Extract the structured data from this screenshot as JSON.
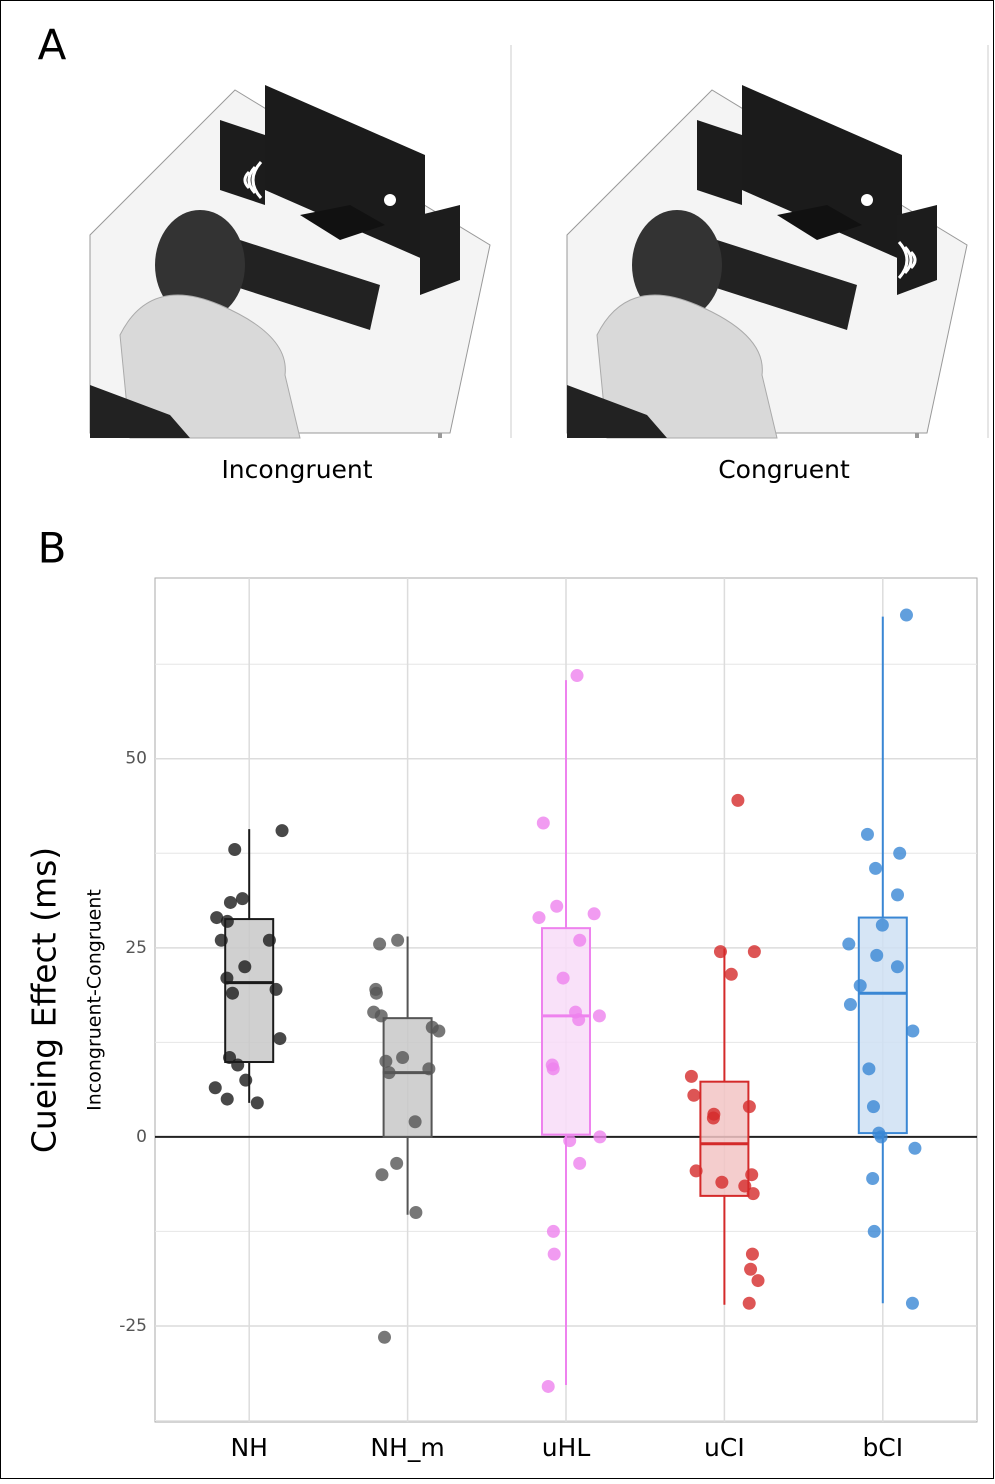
{
  "panel_a": {
    "label": "A",
    "captions": [
      "Incongruent",
      "Congruent"
    ]
  },
  "chart_data": {
    "type": "box",
    "panel_label": "B",
    "ylabel": "Cueing Effect (ms)",
    "ylabel_sub": "Incongruent-Congruent",
    "categories": [
      "NH",
      "NH_m",
      "uHL",
      "uCI",
      "bCI"
    ],
    "ylim": [
      -37.7,
      73.9
    ],
    "yticks": [
      -25,
      0,
      25,
      50
    ],
    "grid": true,
    "hline": 0,
    "groups": [
      {
        "color": "#1a1a1a",
        "fill": "#c8c8c8",
        "q1": 9.9,
        "median": 20.4,
        "q3": 28.8,
        "whisker_low": 4.5,
        "whisker_high": 40.7,
        "points": [
          40.5,
          38,
          31.5,
          31,
          29,
          28.5,
          26,
          26,
          22.5,
          21,
          19.5,
          19,
          13,
          10.5,
          9.5,
          7.5,
          6.5,
          5,
          4.5
        ]
      },
      {
        "color": "#555555",
        "fill": "#c8c8c8",
        "q1": 0,
        "median": 8.5,
        "q3": 15.7,
        "whisker_low": -10.3,
        "whisker_high": 26.5,
        "points": [
          26,
          25.5,
          19.5,
          19,
          16.5,
          16,
          14.5,
          14,
          10.5,
          10,
          9,
          8.5,
          2,
          -3.5,
          -5,
          -10,
          -26.5
        ]
      },
      {
        "color": "#ee82ee",
        "fill": "#f8dcf8",
        "q1": 0.3,
        "median": 16,
        "q3": 27.6,
        "whisker_low": -32.8,
        "whisker_high": 60.4,
        "points": [
          61,
          41.5,
          30.5,
          29.5,
          29,
          26,
          21,
          16.5,
          16,
          15.5,
          9.5,
          9,
          0,
          -0.5,
          -3.5,
          -12.5,
          -15.5,
          -33
        ]
      },
      {
        "color": "#d42a2a",
        "fill": "#f2c4c4",
        "q1": -7.8,
        "median": -0.9,
        "q3": 7.3,
        "whisker_low": -22.2,
        "whisker_high": 24.9,
        "points": [
          44.5,
          24.5,
          24.5,
          21.5,
          8,
          5.5,
          4,
          3,
          2.5,
          -4.5,
          -5,
          -6.5,
          -6,
          -7.5,
          -15.5,
          -17.5,
          -19,
          -22
        ]
      },
      {
        "color": "#3a87d4",
        "fill": "#cfe0f3",
        "q1": 0.5,
        "median": 19,
        "q3": 29,
        "whisker_low": -22,
        "whisker_high": 68.8,
        "points": [
          69,
          40,
          37.5,
          35.5,
          32,
          28,
          25.5,
          24,
          22.5,
          20,
          17.5,
          14,
          9,
          4,
          0.5,
          0,
          -1.5,
          -5.5,
          -12.5,
          -22
        ]
      }
    ]
  }
}
